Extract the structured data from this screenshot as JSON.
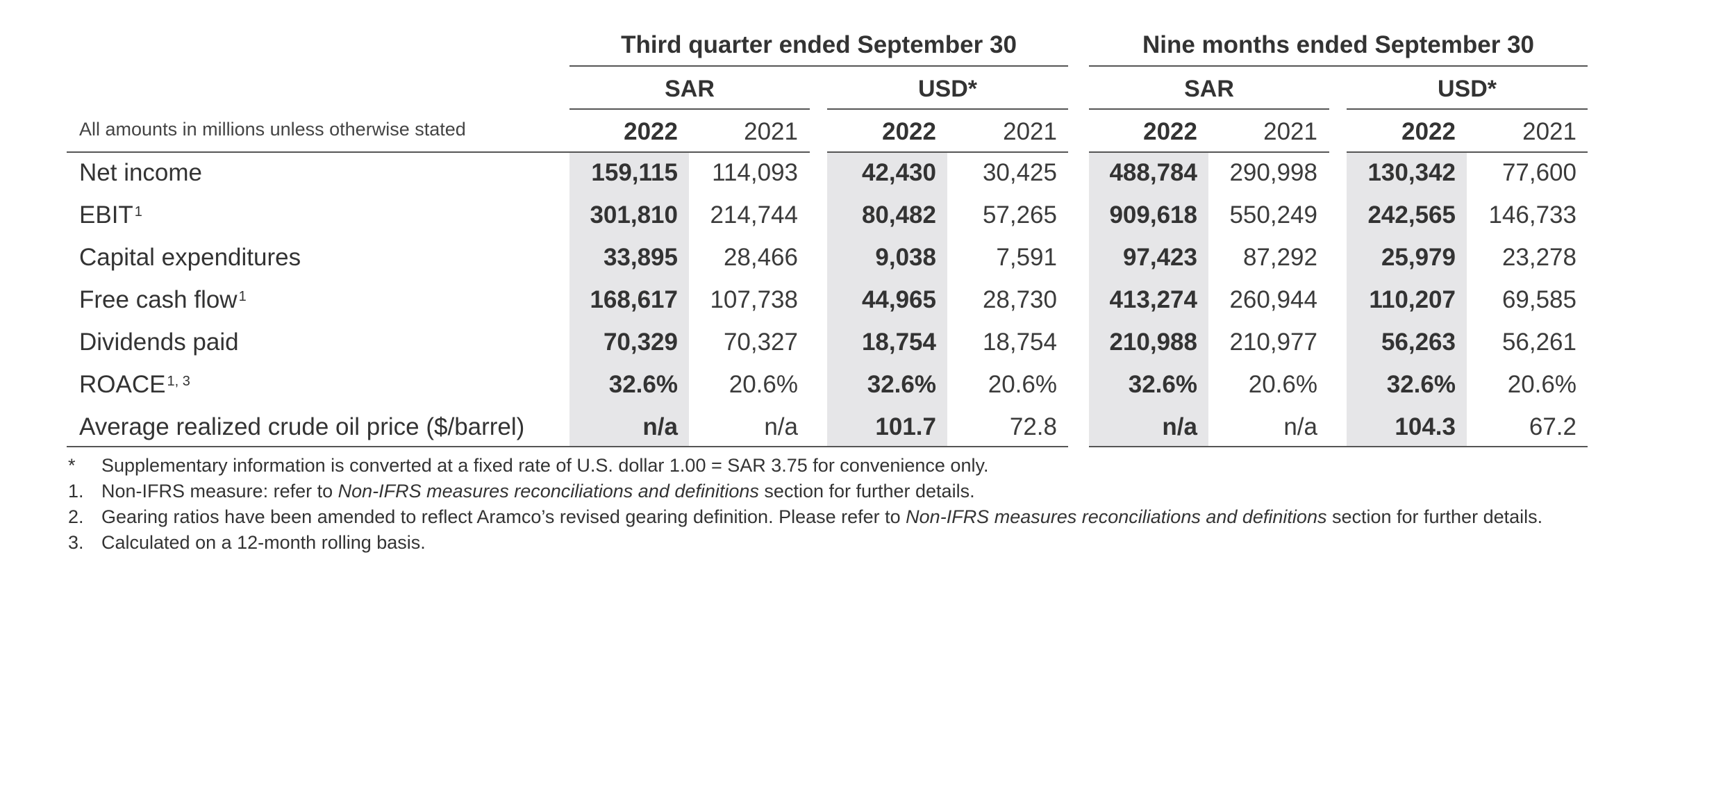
{
  "header": {
    "group_q3": "Third quarter ended September 30",
    "group_9m": "Nine months ended September 30",
    "currency_sar": "SAR",
    "currency_usd": "USD*",
    "year_current": "2022",
    "year_prior": "2021",
    "amounts_note": "All amounts in millions unless otherwise stated"
  },
  "rows": [
    {
      "label": "Net income",
      "sup": "",
      "values": [
        "159,115",
        "114,093",
        "42,430",
        "30,425",
        "488,784",
        "290,998",
        "130,342",
        "77,600"
      ]
    },
    {
      "label": "EBIT",
      "sup": "1",
      "values": [
        "301,810",
        "214,744",
        "80,482",
        "57,265",
        "909,618",
        "550,249",
        "242,565",
        "146,733"
      ]
    },
    {
      "label": "Capital expenditures",
      "sup": "",
      "values": [
        "33,895",
        "28,466",
        "9,038",
        "7,591",
        "97,423",
        "87,292",
        "25,979",
        "23,278"
      ]
    },
    {
      "label": "Free cash flow",
      "sup": "1",
      "values": [
        "168,617",
        "107,738",
        "44,965",
        "28,730",
        "413,274",
        "260,944",
        "110,207",
        "69,585"
      ]
    },
    {
      "label": "Dividends paid",
      "sup": "",
      "values": [
        "70,329",
        "70,327",
        "18,754",
        "18,754",
        "210,988",
        "210,977",
        "56,263",
        "56,261"
      ]
    },
    {
      "label": "ROACE",
      "sup": "1, 3",
      "values": [
        "32.6%",
        "20.6%",
        "32.6%",
        "20.6%",
        "32.6%",
        "20.6%",
        "32.6%",
        "20.6%"
      ]
    },
    {
      "label": "Average realized crude oil price ($/barrel)",
      "sup": "",
      "values": [
        "n/a",
        "n/a",
        "101.7",
        "72.8",
        "n/a",
        "n/a",
        "104.3",
        "67.2"
      ]
    }
  ],
  "footnotes": [
    {
      "mark": "*",
      "text_before": "Supplementary information is converted at a fixed rate of U.S. dollar 1.00 = SAR 3.75 for convenience only.",
      "italic": "",
      "text_after": ""
    },
    {
      "mark": "1.",
      "text_before": "Non-IFRS measure: refer to ",
      "italic": "Non-IFRS measures reconciliations and definitions",
      "text_after": " section for further details."
    },
    {
      "mark": "2.",
      "text_before": "Gearing ratios have been amended to reflect Aramco’s revised gearing definition. Please refer to ",
      "italic": "Non-IFRS measures reconciliations and definitions",
      "text_after": " section for further details."
    },
    {
      "mark": "3.",
      "text_before": "Calculated on a 12-month rolling basis.",
      "italic": "",
      "text_after": ""
    }
  ]
}
